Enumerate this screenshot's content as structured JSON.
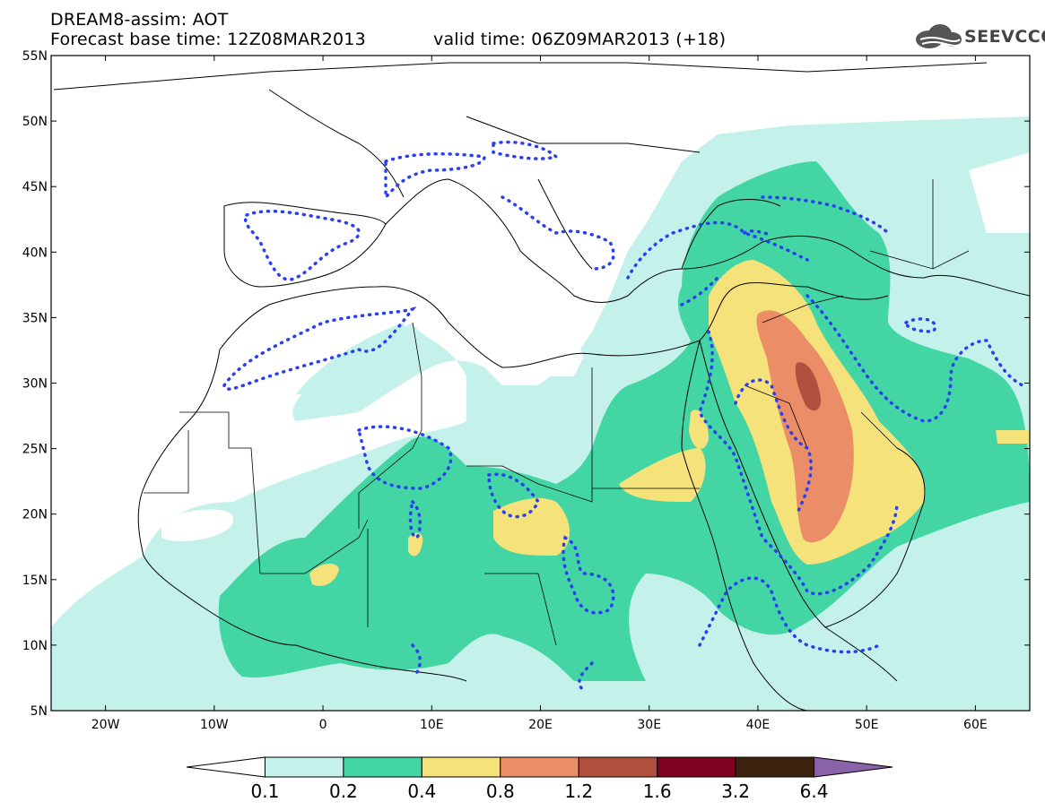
{
  "title": {
    "line1": "DREAM8-assim: AOT",
    "line2": "Forecast base time: 12Z08MAR2013",
    "line3": "valid time: 06Z09MAR2013 (+18)"
  },
  "logo": {
    "text": "SEEVCCC",
    "icon": "cloud-logo-icon"
  },
  "map": {
    "lat_labels": [
      "55N",
      "50N",
      "45N",
      "40N",
      "35N",
      "30N",
      "25N",
      "20N",
      "15N",
      "10N",
      "5N"
    ],
    "lon_labels": [
      "20W",
      "10W",
      "0",
      "10E",
      "20E",
      "30E",
      "40E",
      "50E",
      "60E"
    ],
    "lat_range": [
      5,
      55
    ],
    "lon_range": [
      -25,
      65
    ]
  },
  "colorbar": {
    "labels": [
      "0.1",
      "0.2",
      "0.4",
      "0.8",
      "1.2",
      "1.6",
      "3.2",
      "6.4"
    ],
    "colors": [
      "#ffffff",
      "#c4f2ea",
      "#43d6a4",
      "#f6e27a",
      "#eb8e68",
      "#b25040",
      "#800020",
      "#3d2210",
      "#8a62a8"
    ]
  }
}
